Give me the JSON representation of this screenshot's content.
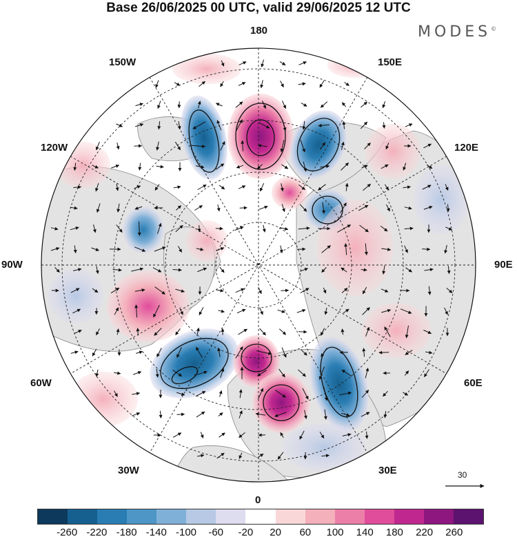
{
  "title": "Base 26/06/2025 00 UTC, valid 29/06/2025 12 UTC",
  "brand": "MODES",
  "brand_mark": "©",
  "longitude_labels": {
    "top": "180",
    "top_left": "150W",
    "top_right": "150E",
    "upper_left": "120W",
    "upper_right": "120E",
    "left": "90W",
    "right": "90E",
    "lower_left": "60W",
    "lower_right": "60E",
    "bottom_left": "30W",
    "bottom_right": "30E",
    "bottom": "0"
  },
  "reference_vector_label": "30",
  "colorbar": {
    "tick_labels": [
      "-260",
      "-220",
      "-180",
      "-140",
      "-100",
      "-60",
      "-20",
      "20",
      "60",
      "100",
      "140",
      "180",
      "220",
      "260"
    ],
    "colors": [
      "#0d3a5c",
      "#16608f",
      "#2a7db3",
      "#4d96c6",
      "#7fb0d8",
      "#b7c9e4",
      "#dedcef",
      "#ffffff",
      "#f9d7d9",
      "#f4b0bb",
      "#ec7fa8",
      "#e04d9b",
      "#c1288f",
      "#8e177f",
      "#5c126f"
    ]
  },
  "map": {
    "projection": "north polar stereographic",
    "anomaly_centers": [
      {
        "name": "pos-pacific-180",
        "value": 260
      },
      {
        "name": "neg-east-siberia",
        "value": -180
      },
      {
        "name": "neg-alaska",
        "value": -180
      },
      {
        "name": "pos-chukchi",
        "value": 100
      },
      {
        "name": "neg-laptev",
        "value": -140
      },
      {
        "name": "pos-siberia",
        "value": 100
      },
      {
        "name": "neg-canada",
        "value": -100
      },
      {
        "name": "pos-canada-east",
        "value": 140
      },
      {
        "name": "neg-atlantic",
        "value": -220
      },
      {
        "name": "pos-iceland",
        "value": 220
      },
      {
        "name": "pos-britain",
        "value": 180
      },
      {
        "name": "neg-scandinavia",
        "value": -220
      },
      {
        "name": "pos-russia",
        "value": 60
      },
      {
        "name": "neg-caspian",
        "value": -60
      }
    ]
  }
}
